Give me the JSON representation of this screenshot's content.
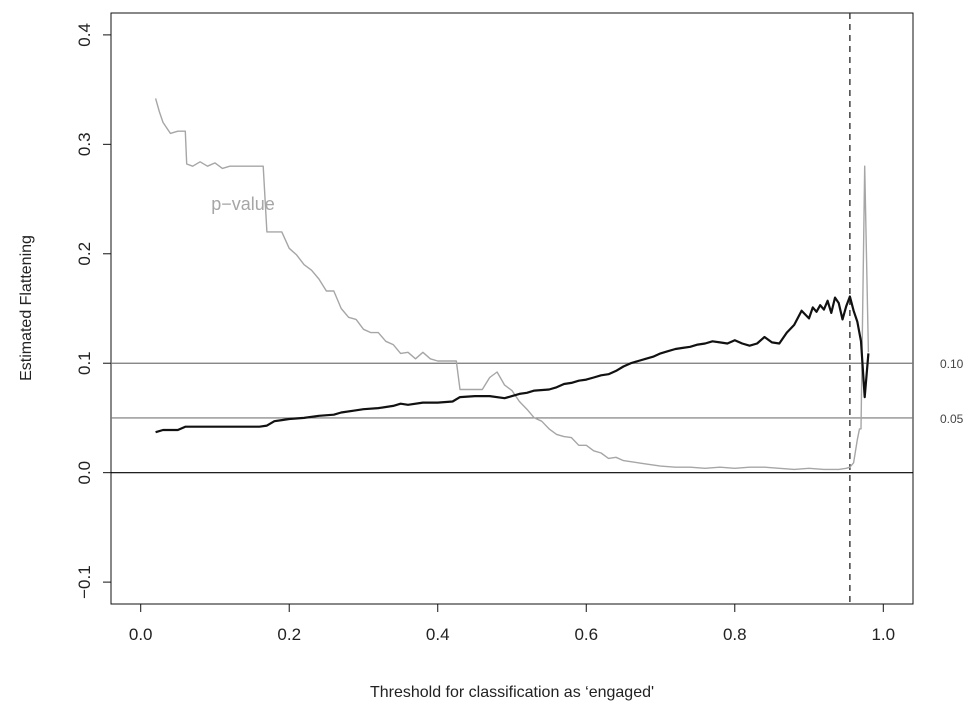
{
  "chart_data": {
    "type": "line",
    "xlabel": "Threshold for classification as ‘engaged'",
    "ylabel": "Estimated Flattening",
    "xlim": [
      -0.04,
      1.04
    ],
    "ylim": [
      -0.12,
      0.42
    ],
    "x_ticks": [
      "0.0",
      "0.2",
      "0.4",
      "0.6",
      "0.8",
      "1.0"
    ],
    "y_ticks": [
      "−0.1",
      "0.0",
      "0.1",
      "0.2",
      "0.3",
      "0.4"
    ],
    "grid": false,
    "legend": "none",
    "reference_lines": [
      {
        "y": 0.1,
        "label": "0.10",
        "color": "#777777"
      },
      {
        "y": 0.05,
        "label": "0.05",
        "color": "#777777"
      },
      {
        "y": 0.0,
        "label": "",
        "color": "#000000"
      }
    ],
    "vertical_line": {
      "x": 0.955,
      "style": "dashed",
      "color": "#333333"
    },
    "annotations": [
      {
        "text": "p−value",
        "x": 0.095,
        "y": 0.24,
        "color": "#a6a6a6"
      }
    ],
    "series": [
      {
        "color": "#111111",
        "x": [
          0.02,
          0.03,
          0.05,
          0.06,
          0.08,
          0.1,
          0.12,
          0.14,
          0.16,
          0.17,
          0.18,
          0.19,
          0.2,
          0.22,
          0.24,
          0.26,
          0.27,
          0.29,
          0.3,
          0.32,
          0.34,
          0.35,
          0.36,
          0.38,
          0.4,
          0.42,
          0.43,
          0.45,
          0.47,
          0.49,
          0.5,
          0.51,
          0.52,
          0.53,
          0.55,
          0.56,
          0.57,
          0.58,
          0.59,
          0.6,
          0.61,
          0.62,
          0.63,
          0.64,
          0.65,
          0.66,
          0.67,
          0.68,
          0.69,
          0.7,
          0.71,
          0.72,
          0.73,
          0.74,
          0.75,
          0.76,
          0.77,
          0.78,
          0.79,
          0.8,
          0.81,
          0.82,
          0.83,
          0.84,
          0.85,
          0.86,
          0.87,
          0.88,
          0.89,
          0.9,
          0.905,
          0.91,
          0.915,
          0.92,
          0.925,
          0.93,
          0.935,
          0.94,
          0.945,
          0.95,
          0.955,
          0.96,
          0.965,
          0.97,
          0.975,
          0.98
        ],
        "y": [
          0.037,
          0.039,
          0.039,
          0.042,
          0.042,
          0.042,
          0.042,
          0.042,
          0.042,
          0.043,
          0.047,
          0.048,
          0.049,
          0.05,
          0.052,
          0.053,
          0.055,
          0.057,
          0.058,
          0.059,
          0.061,
          0.063,
          0.062,
          0.064,
          0.064,
          0.065,
          0.069,
          0.07,
          0.07,
          0.068,
          0.07,
          0.072,
          0.073,
          0.075,
          0.076,
          0.078,
          0.081,
          0.082,
          0.084,
          0.085,
          0.087,
          0.089,
          0.09,
          0.093,
          0.097,
          0.1,
          0.102,
          0.104,
          0.106,
          0.109,
          0.111,
          0.113,
          0.114,
          0.115,
          0.117,
          0.118,
          0.12,
          0.119,
          0.118,
          0.121,
          0.118,
          0.116,
          0.118,
          0.124,
          0.119,
          0.118,
          0.128,
          0.135,
          0.148,
          0.141,
          0.151,
          0.147,
          0.153,
          0.149,
          0.157,
          0.146,
          0.16,
          0.155,
          0.14,
          0.152,
          0.161,
          0.148,
          0.138,
          0.12,
          0.069,
          0.109
        ]
      },
      {
        "color": "#a6a6a6",
        "x": [
          0.02,
          0.025,
          0.03,
          0.04,
          0.05,
          0.06,
          0.062,
          0.07,
          0.08,
          0.09,
          0.1,
          0.11,
          0.12,
          0.13,
          0.14,
          0.15,
          0.16,
          0.165,
          0.17,
          0.18,
          0.19,
          0.2,
          0.21,
          0.22,
          0.23,
          0.24,
          0.25,
          0.26,
          0.27,
          0.28,
          0.29,
          0.3,
          0.31,
          0.32,
          0.33,
          0.34,
          0.35,
          0.36,
          0.37,
          0.38,
          0.39,
          0.4,
          0.41,
          0.42,
          0.425,
          0.43,
          0.44,
          0.45,
          0.46,
          0.47,
          0.48,
          0.49,
          0.5,
          0.51,
          0.52,
          0.53,
          0.54,
          0.55,
          0.56,
          0.57,
          0.58,
          0.59,
          0.6,
          0.61,
          0.62,
          0.63,
          0.64,
          0.65,
          0.66,
          0.67,
          0.68,
          0.7,
          0.72,
          0.74,
          0.76,
          0.78,
          0.8,
          0.82,
          0.84,
          0.86,
          0.88,
          0.9,
          0.92,
          0.94,
          0.95,
          0.955,
          0.96,
          0.965,
          0.968,
          0.97,
          0.975,
          0.98
        ],
        "y": [
          0.342,
          0.33,
          0.32,
          0.31,
          0.312,
          0.312,
          0.282,
          0.28,
          0.284,
          0.28,
          0.283,
          0.278,
          0.28,
          0.28,
          0.28,
          0.28,
          0.28,
          0.28,
          0.22,
          0.22,
          0.22,
          0.205,
          0.199,
          0.19,
          0.185,
          0.177,
          0.166,
          0.166,
          0.15,
          0.142,
          0.14,
          0.131,
          0.128,
          0.128,
          0.12,
          0.117,
          0.109,
          0.11,
          0.104,
          0.11,
          0.104,
          0.102,
          0.102,
          0.102,
          0.102,
          0.076,
          0.076,
          0.076,
          0.076,
          0.087,
          0.092,
          0.08,
          0.075,
          0.065,
          0.058,
          0.05,
          0.047,
          0.04,
          0.035,
          0.033,
          0.032,
          0.025,
          0.025,
          0.02,
          0.018,
          0.013,
          0.014,
          0.011,
          0.01,
          0.009,
          0.008,
          0.006,
          0.005,
          0.005,
          0.004,
          0.005,
          0.004,
          0.005,
          0.005,
          0.004,
          0.003,
          0.004,
          0.003,
          0.003,
          0.004,
          0.005,
          0.009,
          0.03,
          0.04,
          0.04,
          0.28,
          0.11
        ]
      }
    ]
  }
}
